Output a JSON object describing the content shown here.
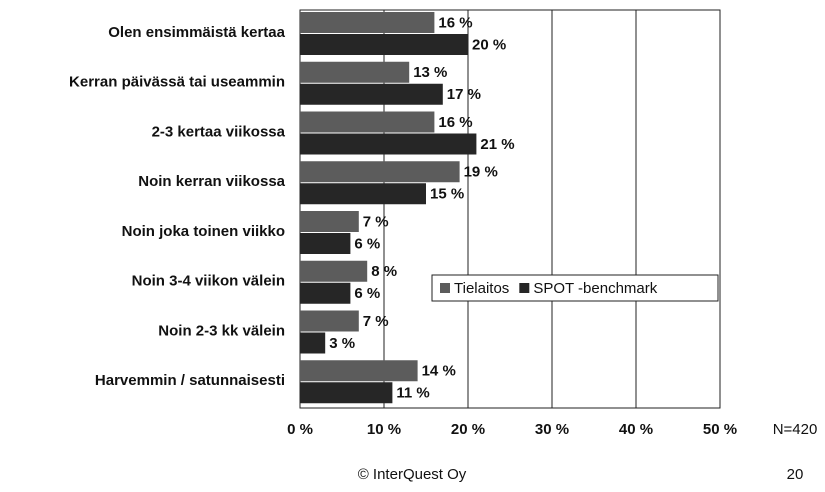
{
  "chart_data": {
    "type": "bar",
    "orientation": "horizontal",
    "categories": [
      "Olen ensimmäistä kertaa",
      "Kerran päivässä tai useammin",
      "2-3 kertaa viikossa",
      "Noin kerran viikossa",
      "Noin joka toinen viikko",
      "Noin 3-4 viikon välein",
      "Noin 2-3 kk välein",
      "Harvemmin / satunnaisesti"
    ],
    "series": [
      {
        "name": "Tielaitos",
        "color": "#5c5c5c",
        "values": [
          16,
          13,
          16,
          19,
          7,
          8,
          7,
          14
        ],
        "value_labels": [
          "16 %",
          "13 %",
          "16 %",
          "19 %",
          "7 %",
          "8 %",
          "7 %",
          "14 %"
        ]
      },
      {
        "name": "SPOT -benchmark",
        "color": "#262626",
        "values": [
          20,
          17,
          21,
          15,
          6,
          6,
          3,
          11
        ],
        "value_labels": [
          "20 %",
          "17 %",
          "21 %",
          "15 %",
          "6 %",
          "6 %",
          "3 %",
          "11 %"
        ]
      }
    ],
    "xlim": [
      0,
      50
    ],
    "xticks": [
      {
        "value": 0,
        "label": "0 %"
      },
      {
        "value": 10,
        "label": "10 %"
      },
      {
        "value": 20,
        "label": "20 %"
      },
      {
        "value": 30,
        "label": "30 %"
      },
      {
        "value": 40,
        "label": "40 %"
      },
      {
        "value": 50,
        "label": "50 %"
      }
    ],
    "grid": true,
    "legend": "center-right",
    "annotation": "N=420"
  },
  "footer": {
    "copyright": "© InterQuest Oy",
    "page": "20"
  }
}
